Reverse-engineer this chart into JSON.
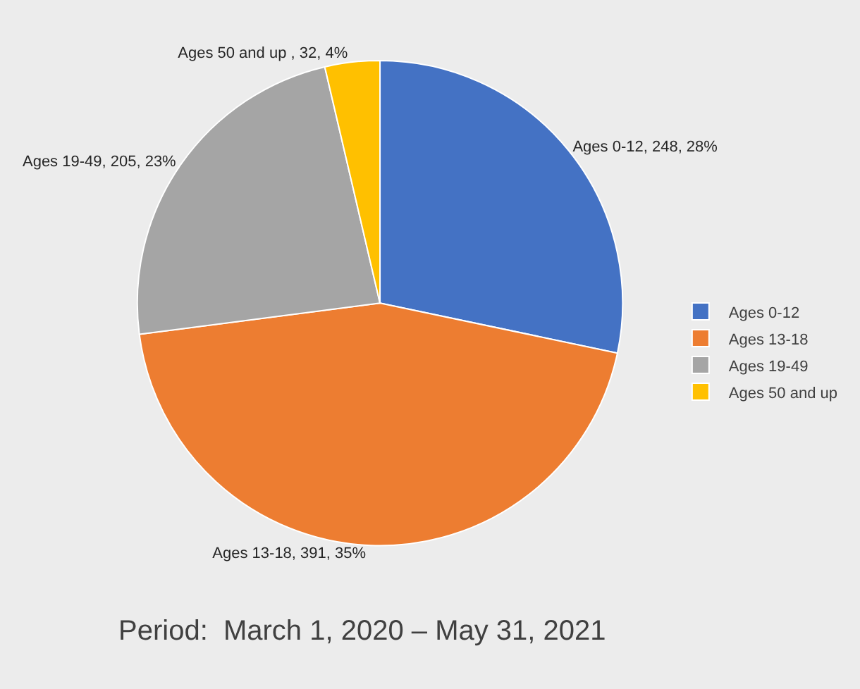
{
  "chart_data": {
    "type": "pie",
    "categories": [
      "Ages 0-12",
      "Ages 13-18",
      "Ages 19-49",
      "Ages 50 and up"
    ],
    "values": [
      248,
      391,
      205,
      32
    ],
    "colors": [
      "#4472c4",
      "#ed7d31",
      "#a5a5a5",
      "#ffc000"
    ],
    "value_labels": [
      "Ages 0-12, 248, 28%",
      "Ages 13-18, 391, 35%",
      "Ages 19-49, 205, 23%",
      "Ages 50 and up , 32, 4%"
    ],
    "annotations": [
      "Period:  March 1, 2020 – May 31, 2021"
    ],
    "legend": "right"
  }
}
